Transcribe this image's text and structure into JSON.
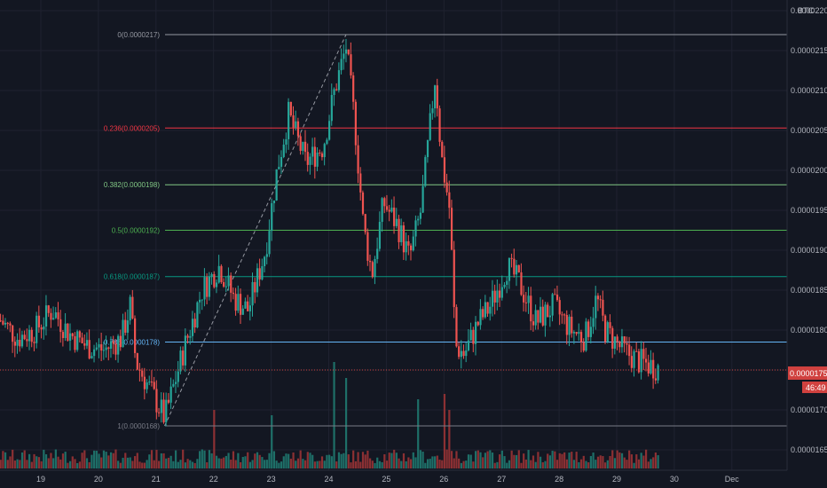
{
  "currency_label": "BTC",
  "colors": {
    "background": "#131722",
    "grid": "#1f2230",
    "up": "#26a69a",
    "down": "#ef5350",
    "vol_up": "#1e6f68",
    "vol_down": "#8c3033",
    "axis_text": "#b2b5be",
    "current_price_line": "#d0413f",
    "countdown_bg": "#d0413f"
  },
  "current_price": {
    "value": 1.75e-05,
    "label": "0.00001750",
    "countdown": "46:49"
  },
  "chart_data": {
    "type": "candlestick",
    "y_axis": {
      "ticks": [
        2.2e-05,
        2.15e-05,
        2.1e-05,
        2.05e-05,
        2e-05,
        1.95e-05,
        1.9e-05,
        1.85e-05,
        1.8e-05,
        1.75e-05,
        1.7e-05,
        1.65e-05
      ],
      "tick_labels": [
        "0.00002200",
        "0.00002150",
        "0.00002100",
        "0.00002050",
        "0.00002000",
        "0.00001950",
        "0.00001900",
        "0.00001850",
        "0.00001800",
        "0.00001750",
        "0.00001700",
        "0.00001650"
      ]
    },
    "x_axis": {
      "ticks": [
        "19",
        "20",
        "21",
        "22",
        "23",
        "24",
        "25",
        "26",
        "27",
        "28",
        "29",
        "30",
        "Dec"
      ]
    },
    "fib_levels": [
      {
        "label": "0(0.0000217)",
        "value": 2.17e-05,
        "color": "#9598a1"
      },
      {
        "label": "0.236(0.0000205)",
        "value": 2.053e-05,
        "color": "#f23645"
      },
      {
        "label": "0.382(0.0000198)",
        "value": 1.982e-05,
        "color": "#81c784"
      },
      {
        "label": "0.5(0.0000192)",
        "value": 1.925e-05,
        "color": "#4caf50"
      },
      {
        "label": "0.618(0.0000187)",
        "value": 1.867e-05,
        "color": "#089981"
      },
      {
        "label": "0.786(0.0000178)",
        "value": 1.785e-05,
        "color": "#64b5f6"
      },
      {
        "label": "1(0.0000168)",
        "value": 1.68e-05,
        "color": "#787b86"
      }
    ],
    "trend_line": {
      "from": {
        "day": 21.15,
        "price": 1.68e-05
      },
      "to": {
        "day": 24.3,
        "price": 2.17e-05
      }
    },
    "price_path": [
      {
        "day": 18.3,
        "price": 1.812e-05
      },
      {
        "day": 18.6,
        "price": 1.79e-05
      },
      {
        "day": 18.9,
        "price": 1.8e-05
      },
      {
        "day": 19.2,
        "price": 1.825e-05
      },
      {
        "day": 19.5,
        "price": 1.795e-05
      },
      {
        "day": 19.8,
        "price": 1.78e-05
      },
      {
        "day": 20.1,
        "price": 1.775e-05
      },
      {
        "day": 20.4,
        "price": 1.79e-05
      },
      {
        "day": 20.55,
        "price": 1.83e-05
      },
      {
        "day": 20.65,
        "price": 1.76e-05
      },
      {
        "day": 20.9,
        "price": 1.725e-05
      },
      {
        "day": 21.15,
        "price": 1.69e-05
      },
      {
        "day": 21.5,
        "price": 1.78e-05
      },
      {
        "day": 21.8,
        "price": 1.85e-05
      },
      {
        "day": 22.1,
        "price": 1.88e-05
      },
      {
        "day": 22.35,
        "price": 1.84e-05
      },
      {
        "day": 22.6,
        "price": 1.825e-05
      },
      {
        "day": 22.9,
        "price": 1.9e-05
      },
      {
        "day": 23.1,
        "price": 2e-05
      },
      {
        "day": 23.3,
        "price": 2.07e-05
      },
      {
        "day": 23.6,
        "price": 2.01e-05
      },
      {
        "day": 23.9,
        "price": 2.03e-05
      },
      {
        "day": 24.1,
        "price": 2.1e-05
      },
      {
        "day": 24.3,
        "price": 2.155e-05
      },
      {
        "day": 24.45,
        "price": 2.06e-05
      },
      {
        "day": 24.6,
        "price": 1.93e-05
      },
      {
        "day": 24.75,
        "price": 1.87e-05
      },
      {
        "day": 24.95,
        "price": 1.96e-05
      },
      {
        "day": 25.2,
        "price": 1.93e-05
      },
      {
        "day": 25.4,
        "price": 1.89e-05
      },
      {
        "day": 25.6,
        "price": 1.95e-05
      },
      {
        "day": 25.75,
        "price": 2.05e-05
      },
      {
        "day": 25.85,
        "price": 2.12e-05
      },
      {
        "day": 25.95,
        "price": 2.02e-05
      },
      {
        "day": 26.1,
        "price": 1.95e-05
      },
      {
        "day": 26.2,
        "price": 1.78e-05
      },
      {
        "day": 26.35,
        "price": 1.77e-05
      },
      {
        "day": 26.6,
        "price": 1.81e-05
      },
      {
        "day": 26.8,
        "price": 1.83e-05
      },
      {
        "day": 27.1,
        "price": 1.88e-05
      },
      {
        "day": 27.3,
        "price": 1.86e-05
      },
      {
        "day": 27.6,
        "price": 1.81e-05
      },
      {
        "day": 27.9,
        "price": 1.83e-05
      },
      {
        "day": 28.2,
        "price": 1.8e-05
      },
      {
        "day": 28.45,
        "price": 1.79e-05
      },
      {
        "day": 28.65,
        "price": 1.84e-05
      },
      {
        "day": 28.8,
        "price": 1.8e-05
      },
      {
        "day": 29.1,
        "price": 1.775e-05
      },
      {
        "day": 29.4,
        "price": 1.76e-05
      },
      {
        "day": 29.75,
        "price": 1.752e-05
      }
    ],
    "volume_spikes": [
      {
        "day": 22.0,
        "level": 0.55
      },
      {
        "day": 23.0,
        "level": 0.5
      },
      {
        "day": 24.1,
        "level": 1.0
      },
      {
        "day": 24.3,
        "level": 0.85
      },
      {
        "day": 25.55,
        "level": 0.65
      },
      {
        "day": 26.0,
        "level": 0.7
      },
      {
        "day": 26.1,
        "level": 0.55
      }
    ]
  }
}
